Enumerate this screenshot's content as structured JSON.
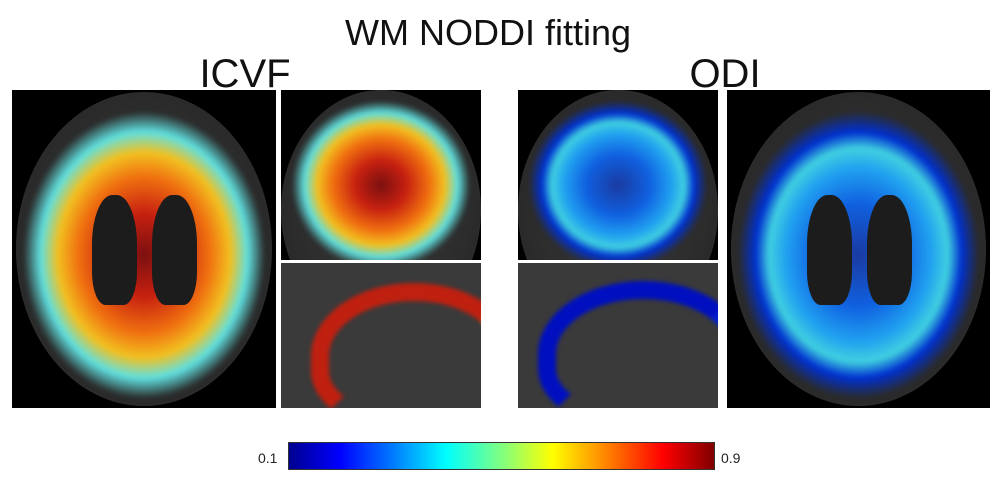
{
  "title": "WM NODDI fitting",
  "panels": {
    "left_label": "ICVF",
    "right_label": "ODI"
  },
  "colorbar": {
    "min_label": "0.1",
    "max_label": "0.9",
    "colormap": "jet"
  }
}
